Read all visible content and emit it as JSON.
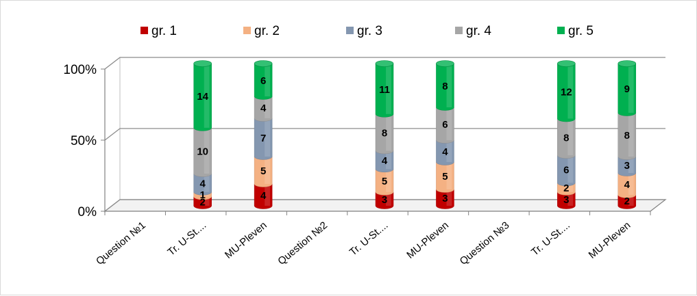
{
  "chart_data": {
    "type": "bar",
    "stacked": "percent",
    "three_d": true,
    "title": "",
    "xlabel": "",
    "ylabel": "",
    "ylim": [
      0,
      100
    ],
    "y_ticks": [
      "0%",
      "50%",
      "100%"
    ],
    "grid": true,
    "legend_position": "top",
    "categories": [
      "Question №1",
      "Tr. U-St....",
      "MU-Pleven",
      "Question №2",
      "Tr. U-St....",
      "MU-Pleven",
      "Question №3",
      "Tr. U-St....",
      "MU-Pleven"
    ],
    "series": [
      {
        "name": "gr. 1",
        "color": "#c00000",
        "values": [
          null,
          2,
          4,
          null,
          3,
          3,
          null,
          3,
          2
        ]
      },
      {
        "name": "gr. 2",
        "color": "#f4b183",
        "values": [
          null,
          1,
          5,
          null,
          5,
          5,
          null,
          2,
          4
        ]
      },
      {
        "name": "gr. 3",
        "color": "#8497b0",
        "values": [
          null,
          4,
          7,
          null,
          4,
          4,
          null,
          6,
          3
        ]
      },
      {
        "name": "gr. 4",
        "color": "#a6a6a6",
        "values": [
          null,
          10,
          4,
          null,
          8,
          6,
          null,
          8,
          8
        ]
      },
      {
        "name": "gr. 5",
        "color": "#00b050",
        "values": [
          null,
          14,
          6,
          null,
          11,
          8,
          null,
          12,
          9
        ]
      }
    ]
  }
}
